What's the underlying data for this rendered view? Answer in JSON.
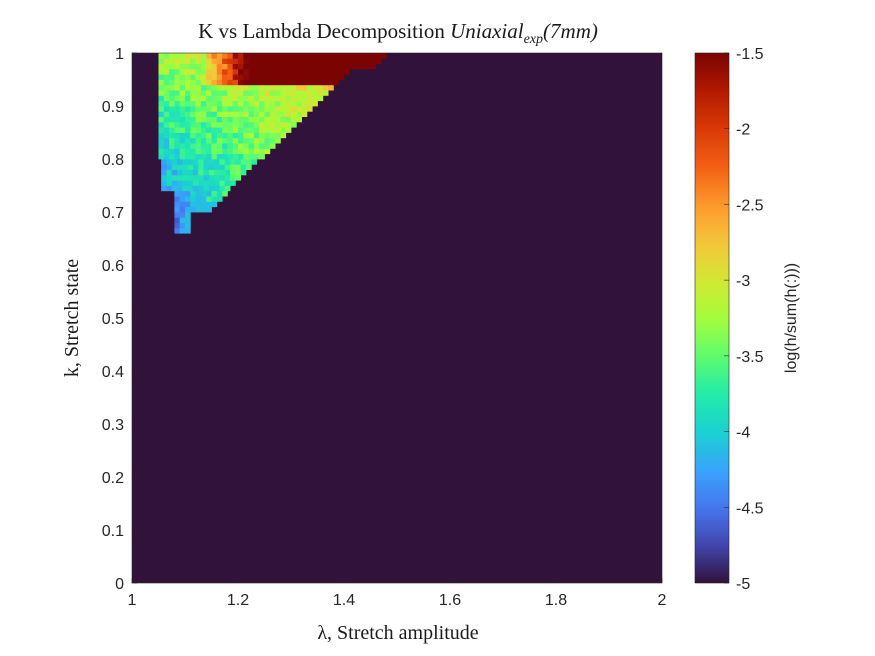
{
  "chart_data": {
    "type": "heatmap",
    "title": {
      "prefix": "K vs Lambda Decomposition ",
      "math_base": "Uniaxial",
      "math_subscript": "exp",
      "math_suffix": "(7mm)"
    },
    "xlabel": "λ, Stretch amplitude",
    "ylabel": "k, Stretch state",
    "xlim": [
      1,
      2
    ],
    "ylim": [
      0,
      1
    ],
    "x_ticks": [
      "1",
      "1.2",
      "1.4",
      "1.6",
      "1.8",
      "2"
    ],
    "y_ticks": [
      "0",
      "0.1",
      "0.2",
      "0.3",
      "0.4",
      "0.5",
      "0.6",
      "0.7",
      "0.8",
      "0.9",
      "1"
    ],
    "colorbar": {
      "label": "log(h/sum(h(:)))",
      "range": [
        -5,
        -1.5
      ],
      "ticks": [
        "-5",
        "-4.5",
        "-4",
        "-3.5",
        "-3",
        "-2.5",
        "-2",
        "-1.5"
      ],
      "colormap": "turbo"
    },
    "background_value": -5,
    "grid": false,
    "density_region": {
      "description_values": [
        {
          "x": 1.18,
          "y": 0.99,
          "value": -1.6
        },
        {
          "x": 1.16,
          "y": 0.97,
          "value": -2.3
        },
        {
          "x": 1.08,
          "y": 0.95,
          "value": -3.0
        },
        {
          "x": 1.07,
          "y": 0.85,
          "value": -3.2
        },
        {
          "x": 1.07,
          "y": 0.78,
          "value": -3.7
        },
        {
          "x": 1.09,
          "y": 0.7,
          "value": -4.0
        },
        {
          "x": 1.09,
          "y": 0.67,
          "value": -4.5
        }
      ]
    }
  }
}
